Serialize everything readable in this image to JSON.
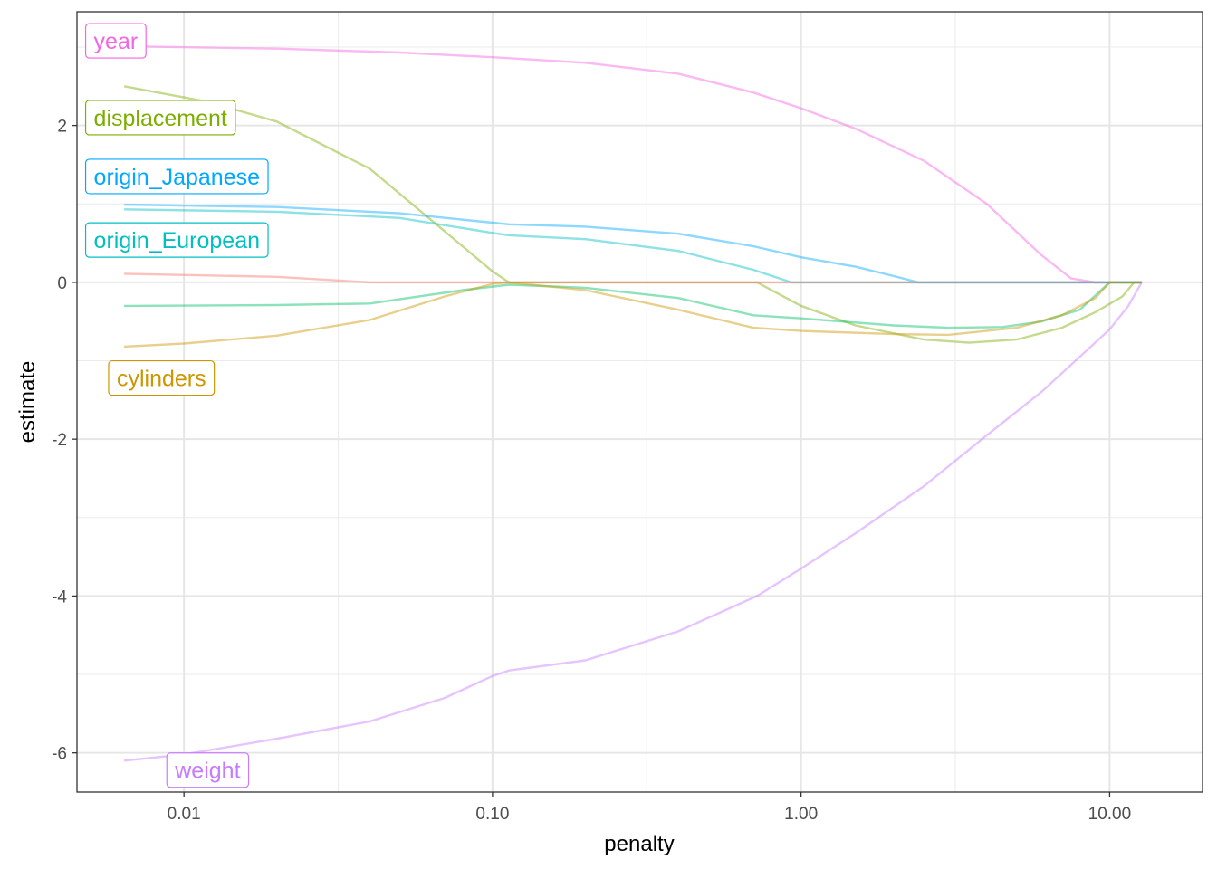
{
  "chart_data": {
    "type": "line",
    "xlabel": "penalty",
    "ylabel": "estimate",
    "x_scale": "log10",
    "xlim": [
      0.0045,
      20
    ],
    "ylim": [
      -6.5,
      3.45
    ],
    "x_ticks": [
      {
        "value": 0.01,
        "label": "0.01"
      },
      {
        "value": 0.1,
        "label": "0.10"
      },
      {
        "value": 1,
        "label": "1.00"
      },
      {
        "value": 10,
        "label": "10.00"
      }
    ],
    "y_ticks": [
      {
        "value": -6,
        "label": "-6"
      },
      {
        "value": -4,
        "label": "-4"
      },
      {
        "value": -2,
        "label": "-2"
      },
      {
        "value": 0,
        "label": "0"
      },
      {
        "value": 2,
        "label": "2"
      }
    ],
    "grid": true,
    "legend": "none",
    "line_opacity": 0.45,
    "series": [
      {
        "name": "year",
        "color": "#F564E3",
        "labeled": true,
        "label_anchor": [
          0.0048,
          3.08
        ],
        "points": [
          [
            0.0064,
            3.01
          ],
          [
            0.02,
            2.98
          ],
          [
            0.05,
            2.93
          ],
          [
            0.1,
            2.87
          ],
          [
            0.2,
            2.8
          ],
          [
            0.4,
            2.66
          ],
          [
            0.7,
            2.42
          ],
          [
            1.0,
            2.22
          ],
          [
            1.5,
            1.96
          ],
          [
            2.5,
            1.55
          ],
          [
            4.0,
            1.0
          ],
          [
            6.0,
            0.35
          ],
          [
            7.5,
            0.05
          ],
          [
            9.0,
            0.0
          ],
          [
            12.7,
            0.0
          ]
        ]
      },
      {
        "name": "displacement",
        "color": "#7CAE00",
        "labeled": true,
        "label_anchor": [
          0.0048,
          2.1
        ],
        "points": [
          [
            0.0064,
            2.5
          ],
          [
            0.012,
            2.3
          ],
          [
            0.02,
            2.05
          ],
          [
            0.04,
            1.45
          ],
          [
            0.07,
            0.65
          ],
          [
            0.1,
            0.14
          ],
          [
            0.113,
            0.0
          ],
          [
            0.72,
            0.0
          ],
          [
            1.0,
            -0.3
          ],
          [
            1.5,
            -0.55
          ],
          [
            2.5,
            -0.73
          ],
          [
            3.5,
            -0.77
          ],
          [
            5.0,
            -0.73
          ],
          [
            7.0,
            -0.58
          ],
          [
            9.0,
            -0.38
          ],
          [
            11.0,
            -0.18
          ],
          [
            12.0,
            0.0
          ],
          [
            12.7,
            0.0
          ]
        ]
      },
      {
        "name": "origin_Japanese",
        "color": "#00A9FF",
        "labeled": true,
        "label_anchor": [
          0.0048,
          1.35
        ],
        "points": [
          [
            0.0064,
            0.99
          ],
          [
            0.02,
            0.96
          ],
          [
            0.05,
            0.88
          ],
          [
            0.1,
            0.76
          ],
          [
            0.113,
            0.74
          ],
          [
            0.2,
            0.71
          ],
          [
            0.4,
            0.62
          ],
          [
            0.7,
            0.46
          ],
          [
            1.0,
            0.32
          ],
          [
            1.5,
            0.2
          ],
          [
            2.0,
            0.08
          ],
          [
            2.4,
            0.0
          ],
          [
            12.7,
            0.0
          ]
        ]
      },
      {
        "name": "origin_European",
        "color": "#00BFC4",
        "labeled": true,
        "label_anchor": [
          0.0048,
          0.54
        ],
        "points": [
          [
            0.0064,
            0.93
          ],
          [
            0.02,
            0.9
          ],
          [
            0.05,
            0.82
          ],
          [
            0.1,
            0.63
          ],
          [
            0.113,
            0.6
          ],
          [
            0.2,
            0.55
          ],
          [
            0.4,
            0.4
          ],
          [
            0.7,
            0.16
          ],
          [
            0.93,
            0.0
          ],
          [
            12.7,
            0.0
          ]
        ]
      },
      {
        "name": "",
        "color": "#F8766D",
        "labeled": false,
        "points": [
          [
            0.0064,
            0.11
          ],
          [
            0.02,
            0.07
          ],
          [
            0.04,
            0.0
          ],
          [
            12.7,
            0.0
          ]
        ]
      },
      {
        "name": "",
        "color": "#00BE67",
        "labeled": false,
        "points": [
          [
            0.0064,
            -0.3
          ],
          [
            0.02,
            -0.29
          ],
          [
            0.04,
            -0.27
          ],
          [
            0.08,
            -0.1
          ],
          [
            0.113,
            -0.03
          ],
          [
            0.2,
            -0.07
          ],
          [
            0.4,
            -0.2
          ],
          [
            0.7,
            -0.42
          ],
          [
            1.0,
            -0.46
          ],
          [
            2.0,
            -0.55
          ],
          [
            3.0,
            -0.58
          ],
          [
            4.5,
            -0.57
          ],
          [
            6.0,
            -0.5
          ],
          [
            8.0,
            -0.35
          ],
          [
            10.0,
            0.0
          ],
          [
            12.7,
            0.0
          ]
        ]
      },
      {
        "name": "cylinders",
        "color": "#CD9600",
        "labeled": true,
        "label_anchor": [
          0.0057,
          -1.22
        ],
        "points": [
          [
            0.0064,
            -0.82
          ],
          [
            0.01,
            -0.78
          ],
          [
            0.02,
            -0.68
          ],
          [
            0.04,
            -0.48
          ],
          [
            0.07,
            -0.18
          ],
          [
            0.1,
            -0.02
          ],
          [
            0.113,
            0.0
          ],
          [
            0.2,
            -0.1
          ],
          [
            0.4,
            -0.35
          ],
          [
            0.7,
            -0.58
          ],
          [
            1.0,
            -0.62
          ],
          [
            2.0,
            -0.66
          ],
          [
            3.0,
            -0.67
          ],
          [
            5.0,
            -0.58
          ],
          [
            7.0,
            -0.42
          ],
          [
            9.0,
            -0.2
          ],
          [
            10.0,
            0.0
          ],
          [
            12.7,
            0.0
          ]
        ]
      },
      {
        "name": "weight",
        "color": "#C77CFF",
        "labeled": true,
        "label_anchor": [
          0.0088,
          -6.22
        ],
        "points": [
          [
            0.0064,
            -6.1
          ],
          [
            0.01,
            -6.02
          ],
          [
            0.02,
            -5.82
          ],
          [
            0.04,
            -5.6
          ],
          [
            0.07,
            -5.3
          ],
          [
            0.1,
            -5.02
          ],
          [
            0.113,
            -4.95
          ],
          [
            0.2,
            -4.82
          ],
          [
            0.4,
            -4.45
          ],
          [
            0.72,
            -4.0
          ],
          [
            1.0,
            -3.65
          ],
          [
            1.5,
            -3.2
          ],
          [
            2.5,
            -2.6
          ],
          [
            4.0,
            -1.95
          ],
          [
            6.0,
            -1.4
          ],
          [
            8.0,
            -0.95
          ],
          [
            10.0,
            -0.6
          ],
          [
            11.5,
            -0.3
          ],
          [
            12.7,
            0.0
          ]
        ]
      }
    ]
  }
}
